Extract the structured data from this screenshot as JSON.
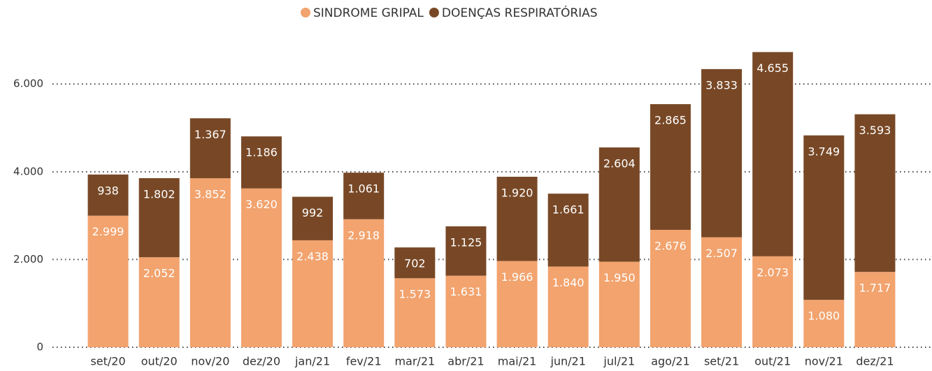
{
  "chart_data": {
    "type": "stacked_bar",
    "categories": [
      "set/20",
      "out/20",
      "nov/20",
      "dez/20",
      "jan/21",
      "fev/21",
      "mar/21",
      "abr/21",
      "mai/21",
      "jun/21",
      "jul/21",
      "ago/21",
      "set/21",
      "out/21",
      "nov/21",
      "dez/21"
    ],
    "series": [
      {
        "name": "SINDROME GRIPAL",
        "color": "#f2a36e",
        "values": [
          2999,
          2052,
          3852,
          3620,
          2438,
          2918,
          1573,
          1631,
          1966,
          1840,
          1950,
          2676,
          2507,
          2073,
          1080,
          1717
        ],
        "value_labels": [
          "2.999",
          "2.052",
          "3.852",
          "3.620",
          "2.438",
          "2.918",
          "1.573",
          "1.631",
          "1.966",
          "1.840",
          "1.950",
          "2.676",
          "2.507",
          "2.073",
          "1.080",
          "1.717"
        ]
      },
      {
        "name": "DOENÇAS RESPIRATÓRIAS",
        "color": "#784826",
        "values": [
          938,
          1802,
          1367,
          1186,
          992,
          1061,
          702,
          1125,
          1920,
          1661,
          2604,
          2865,
          3833,
          4655,
          3749,
          3593
        ],
        "value_labels": [
          "938",
          "1.802",
          "1.367",
          "1.186",
          "992",
          "1.061",
          "702",
          "1.125",
          "1.920",
          "1.661",
          "2.604",
          "2.865",
          "3.833",
          "4.655",
          "3.749",
          "3.593"
        ]
      }
    ],
    "ylim": [
      0,
      6800
    ],
    "yticks": [
      0,
      {
        "value": 2000,
        "label": "2.000"
      },
      {
        "value": 4000,
        "label": "4.000"
      },
      {
        "value": 6000,
        "label": "6.000"
      }
    ],
    "grid": true
  }
}
